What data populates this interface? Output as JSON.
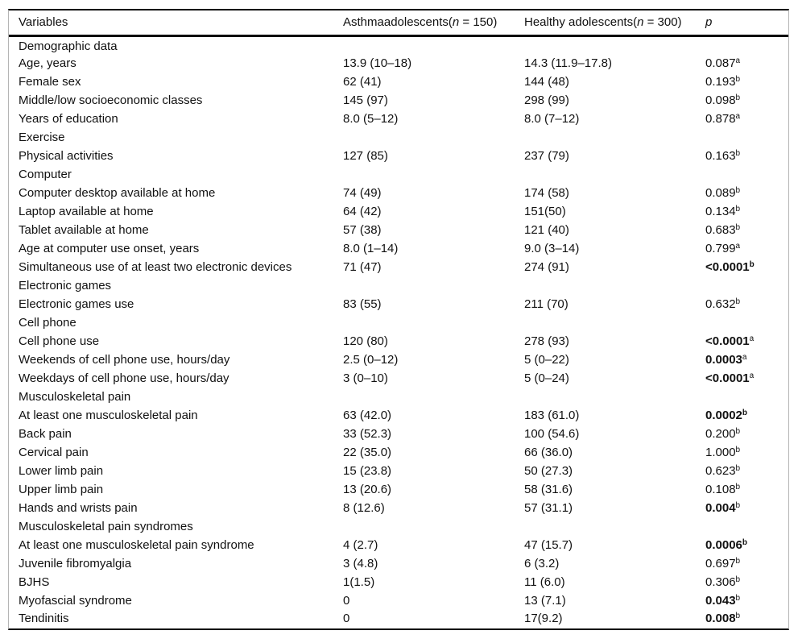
{
  "table": {
    "headers": {
      "variables": "Variables",
      "asthma": {
        "pre": "Asthmaadolescents(",
        "n": "n",
        "post": " = 150)"
      },
      "healthy": {
        "pre": "Healthy adolescents(",
        "n": "n",
        "post": " = 300)"
      },
      "p": "p"
    },
    "rows": [
      {
        "label": "Demographic data",
        "section": true,
        "asthma": "",
        "healthy": "",
        "p": "",
        "p_sup": "",
        "p_bold": false,
        "p_sup_bold": false
      },
      {
        "label": "Age, years",
        "section": false,
        "asthma": "13.9 (10–18)",
        "healthy": "14.3 (11.9–17.8)",
        "p": "0.087",
        "p_sup": "a",
        "p_bold": false,
        "p_sup_bold": false
      },
      {
        "label": "Female sex",
        "section": false,
        "asthma": "62 (41)",
        "healthy": "144 (48)",
        "p": "0.193",
        "p_sup": "b",
        "p_bold": false,
        "p_sup_bold": false
      },
      {
        "label": "Middle/low socioeconomic classes",
        "section": false,
        "asthma": "145 (97)",
        "healthy": "298 (99)",
        "p": "0.098",
        "p_sup": "b",
        "p_bold": false,
        "p_sup_bold": false
      },
      {
        "label": "Years of education",
        "section": false,
        "asthma": "8.0 (5–12)",
        "healthy": "8.0 (7–12)",
        "p": "0.878",
        "p_sup": "a",
        "p_bold": false,
        "p_sup_bold": false
      },
      {
        "label": "Exercise",
        "section": true,
        "asthma": "",
        "healthy": "",
        "p": "",
        "p_sup": "",
        "p_bold": false,
        "p_sup_bold": false
      },
      {
        "label": "Physical activities",
        "section": false,
        "asthma": "127 (85)",
        "healthy": "237 (79)",
        "p": "0.163",
        "p_sup": "b",
        "p_bold": false,
        "p_sup_bold": false
      },
      {
        "label": "Computer",
        "section": true,
        "asthma": "",
        "healthy": "",
        "p": "",
        "p_sup": "",
        "p_bold": false,
        "p_sup_bold": false
      },
      {
        "label": "Computer desktop available at home",
        "section": false,
        "asthma": "74 (49)",
        "healthy": "174 (58)",
        "p": "0.089",
        "p_sup": "b",
        "p_bold": false,
        "p_sup_bold": false
      },
      {
        "label": "Laptop available at home",
        "section": false,
        "asthma": "64 (42)",
        "healthy": "151(50)",
        "p": "0.134",
        "p_sup": "b",
        "p_bold": false,
        "p_sup_bold": false
      },
      {
        "label": "Tablet available at home",
        "section": false,
        "asthma": "57 (38)",
        "healthy": "121 (40)",
        "p": "0.683",
        "p_sup": "b",
        "p_bold": false,
        "p_sup_bold": false
      },
      {
        "label": "Age at computer use onset, years",
        "section": false,
        "asthma": "8.0 (1–14)",
        "healthy": "9.0 (3–14)",
        "p": "0.799",
        "p_sup": "a",
        "p_bold": false,
        "p_sup_bold": false
      },
      {
        "label": "Simultaneous use of at least two electronic devices",
        "section": false,
        "asthma": "71 (47)",
        "healthy": "274 (91)",
        "p": "<0.0001",
        "p_sup": "b",
        "p_bold": true,
        "p_sup_bold": true
      },
      {
        "label": "Electronic games",
        "section": true,
        "asthma": "",
        "healthy": "",
        "p": "",
        "p_sup": "",
        "p_bold": false,
        "p_sup_bold": false
      },
      {
        "label": "Electronic games use",
        "section": false,
        "asthma": "83 (55)",
        "healthy": "211 (70)",
        "p": "0.632",
        "p_sup": "b",
        "p_bold": false,
        "p_sup_bold": false
      },
      {
        "label": "Cell phone",
        "section": true,
        "asthma": "",
        "healthy": "",
        "p": "",
        "p_sup": "",
        "p_bold": false,
        "p_sup_bold": false
      },
      {
        "label": "Cell phone use",
        "section": false,
        "asthma": "120 (80)",
        "healthy": "278 (93)",
        "p": "<0.0001",
        "p_sup": "a",
        "p_bold": true,
        "p_sup_bold": false
      },
      {
        "label": "Weekends of cell phone use, hours/day",
        "section": false,
        "asthma": "2.5 (0–12)",
        "healthy": "5 (0–22)",
        "p": "0.0003",
        "p_sup": "a",
        "p_bold": true,
        "p_sup_bold": false
      },
      {
        "label": "Weekdays of cell phone use, hours/day",
        "section": false,
        "asthma": "3 (0–10)",
        "healthy": "5 (0–24)",
        "p": "<0.0001",
        "p_sup": "a",
        "p_bold": true,
        "p_sup_bold": false
      },
      {
        "label": "Musculoskeletal pain",
        "section": true,
        "asthma": "",
        "healthy": "",
        "p": "",
        "p_sup": "",
        "p_bold": false,
        "p_sup_bold": false
      },
      {
        "label": "At least one musculoskeletal pain",
        "section": false,
        "asthma": "63 (42.0)",
        "healthy": "183 (61.0)",
        "p": "0.0002",
        "p_sup": "b",
        "p_bold": true,
        "p_sup_bold": true
      },
      {
        "label": "Back pain",
        "section": false,
        "asthma": "33 (52.3)",
        "healthy": "100 (54.6)",
        "p": "0.200",
        "p_sup": "b",
        "p_bold": false,
        "p_sup_bold": false
      },
      {
        "label": "Cervical pain",
        "section": false,
        "asthma": "22 (35.0)",
        "healthy": "66 (36.0)",
        "p": "1.000",
        "p_sup": "b",
        "p_bold": false,
        "p_sup_bold": false
      },
      {
        "label": "Lower limb pain",
        "section": false,
        "asthma": "15 (23.8)",
        "healthy": "50 (27.3)",
        "p": "0.623",
        "p_sup": "b",
        "p_bold": false,
        "p_sup_bold": false
      },
      {
        "label": "Upper limb pain",
        "section": false,
        "asthma": "13 (20.6)",
        "healthy": "58 (31.6)",
        "p": "0.108",
        "p_sup": "b",
        "p_bold": false,
        "p_sup_bold": false
      },
      {
        "label": "Hands and wrists pain",
        "section": false,
        "asthma": "8 (12.6)",
        "healthy": "57 (31.1)",
        "p": "0.004",
        "p_sup": "b",
        "p_bold": true,
        "p_sup_bold": false
      },
      {
        "label": "Musculoskeletal pain syndromes",
        "section": true,
        "asthma": "",
        "healthy": "",
        "p": "",
        "p_sup": "",
        "p_bold": false,
        "p_sup_bold": false
      },
      {
        "label": "At least one musculoskeletal pain syndrome",
        "section": false,
        "asthma": "4 (2.7)",
        "healthy": "47 (15.7)",
        "p": "0.0006",
        "p_sup": "b",
        "p_bold": true,
        "p_sup_bold": true
      },
      {
        "label": "Juvenile fibromyalgia",
        "section": false,
        "asthma": "3 (4.8)",
        "healthy": "6 (3.2)",
        "p": "0.697",
        "p_sup": "b",
        "p_bold": false,
        "p_sup_bold": false
      },
      {
        "label": "BJHS",
        "section": false,
        "asthma": "1(1.5)",
        "healthy": "11 (6.0)",
        "p": "0.306",
        "p_sup": "b",
        "p_bold": false,
        "p_sup_bold": false
      },
      {
        "label": "Myofascial syndrome",
        "section": false,
        "asthma": "0",
        "healthy": "13 (7.1)",
        "p": "0.043",
        "p_sup": "b",
        "p_bold": true,
        "p_sup_bold": false
      },
      {
        "label": "Tendinitis",
        "section": false,
        "asthma": "0",
        "healthy": "17(9.2)",
        "p": "0.008",
        "p_sup": "b",
        "p_bold": true,
        "p_sup_bold": false
      }
    ]
  }
}
